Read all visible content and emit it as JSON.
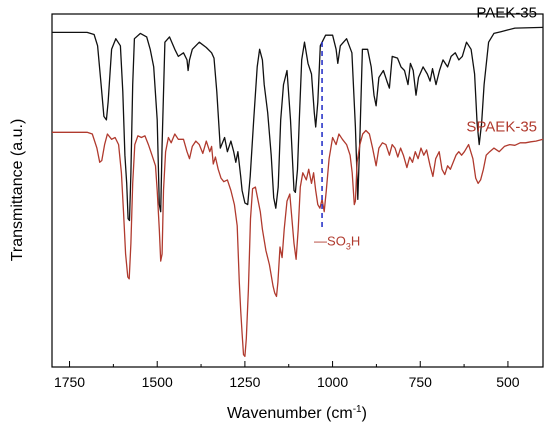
{
  "chart_data": {
    "type": "line",
    "title": "",
    "xlabel": "Wavenumber (cm",
    "xlabel_sup": "-1",
    "xlabel_end": ")",
    "ylabel": "Transmittance (a.u.)",
    "xlim": [
      1800,
      400
    ],
    "x_reversed": true,
    "y_ticks_shown": false,
    "x_ticks": [
      1750,
      1500,
      1250,
      1000,
      750,
      500
    ],
    "x_tick_labels": [
      "1750",
      "1500",
      "1250",
      "1000",
      "750",
      "500"
    ],
    "ylim": [
      0,
      10
    ],
    "grid": false,
    "series": [
      {
        "name": "PAEK-35",
        "color": "#111111",
        "points": [
          [
            1800,
            9.48
          ],
          [
            1700,
            9.48
          ],
          [
            1680,
            9.42
          ],
          [
            1670,
            9.1
          ],
          [
            1660,
            8.0
          ],
          [
            1652,
            7.1
          ],
          [
            1645,
            7.0
          ],
          [
            1640,
            7.5
          ],
          [
            1630,
            9.0
          ],
          [
            1618,
            9.3
          ],
          [
            1605,
            9.1
          ],
          [
            1598,
            7.8
          ],
          [
            1592,
            6.0
          ],
          [
            1587,
            5.2
          ],
          [
            1583,
            4.2
          ],
          [
            1579,
            4.15
          ],
          [
            1575,
            5.5
          ],
          [
            1570,
            8.0
          ],
          [
            1565,
            9.3
          ],
          [
            1548,
            9.45
          ],
          [
            1530,
            9.35
          ],
          [
            1520,
            9.0
          ],
          [
            1510,
            8.5
          ],
          [
            1500,
            7.0
          ],
          [
            1494,
            4.6
          ],
          [
            1490,
            4.4
          ],
          [
            1486,
            6.3
          ],
          [
            1478,
            9.2
          ],
          [
            1465,
            9.35
          ],
          [
            1450,
            9.0
          ],
          [
            1440,
            8.8
          ],
          [
            1425,
            8.9
          ],
          [
            1415,
            8.7
          ],
          [
            1412,
            8.4
          ],
          [
            1408,
            8.7
          ],
          [
            1400,
            9.0
          ],
          [
            1380,
            9.2
          ],
          [
            1360,
            9.05
          ],
          [
            1345,
            8.9
          ],
          [
            1338,
            8.75
          ],
          [
            1330,
            7.8
          ],
          [
            1320,
            6.2
          ],
          [
            1308,
            6.5
          ],
          [
            1300,
            6.1
          ],
          [
            1290,
            6.4
          ],
          [
            1282,
            6.1
          ],
          [
            1276,
            5.8
          ],
          [
            1270,
            6.1
          ],
          [
            1262,
            5.4
          ],
          [
            1258,
            5.0
          ],
          [
            1250,
            4.65
          ],
          [
            1242,
            4.6
          ],
          [
            1235,
            5.4
          ],
          [
            1225,
            7.0
          ],
          [
            1215,
            8.5
          ],
          [
            1208,
            9.0
          ],
          [
            1200,
            8.7
          ],
          [
            1195,
            8.0
          ],
          [
            1185,
            7.2
          ],
          [
            1175,
            6.0
          ],
          [
            1168,
            4.8
          ],
          [
            1162,
            4.5
          ],
          [
            1155,
            5.1
          ],
          [
            1148,
            7.0
          ],
          [
            1140,
            8.0
          ],
          [
            1130,
            8.4
          ],
          [
            1120,
            7.0
          ],
          [
            1110,
            5.0
          ],
          [
            1106,
            4.95
          ],
          [
            1100,
            5.6
          ],
          [
            1095,
            7.0
          ],
          [
            1088,
            8.7
          ],
          [
            1080,
            9.2
          ],
          [
            1070,
            8.6
          ],
          [
            1060,
            8.3
          ],
          [
            1052,
            7.2
          ],
          [
            1048,
            6.8
          ],
          [
            1042,
            7.5
          ],
          [
            1035,
            9.1
          ],
          [
            1020,
            9.4
          ],
          [
            1000,
            9.4
          ],
          [
            990,
            9.0
          ],
          [
            985,
            8.6
          ],
          [
            978,
            9.1
          ],
          [
            960,
            9.3
          ],
          [
            945,
            8.9
          ],
          [
            935,
            6.8
          ],
          [
            928,
            4.75
          ],
          [
            922,
            6.5
          ],
          [
            915,
            9.0
          ],
          [
            900,
            9.0
          ],
          [
            890,
            8.5
          ],
          [
            882,
            7.7
          ],
          [
            876,
            7.4
          ],
          [
            868,
            8.2
          ],
          [
            855,
            8.4
          ],
          [
            845,
            8.1
          ],
          [
            838,
            7.9
          ],
          [
            830,
            8.8
          ],
          [
            815,
            8.75
          ],
          [
            805,
            8.5
          ],
          [
            795,
            8.4
          ],
          [
            785,
            8.0
          ],
          [
            778,
            8.6
          ],
          [
            770,
            8.4
          ],
          [
            762,
            7.7
          ],
          [
            755,
            8.2
          ],
          [
            742,
            8.5
          ],
          [
            730,
            8.3
          ],
          [
            722,
            8.1
          ],
          [
            715,
            8.45
          ],
          [
            705,
            8.0
          ],
          [
            695,
            8.4
          ],
          [
            685,
            8.7
          ],
          [
            672,
            8.5
          ],
          [
            662,
            8.8
          ],
          [
            650,
            8.9
          ],
          [
            640,
            8.7
          ],
          [
            630,
            8.8
          ],
          [
            618,
            9.2
          ],
          [
            605,
            9.0
          ],
          [
            595,
            8.3
          ],
          [
            588,
            6.9
          ],
          [
            582,
            6.3
          ],
          [
            575,
            6.9
          ],
          [
            568,
            8.0
          ],
          [
            555,
            9.2
          ],
          [
            540,
            9.45
          ],
          [
            520,
            9.5
          ],
          [
            500,
            9.55
          ],
          [
            480,
            9.6
          ],
          [
            400,
            9.62
          ]
        ]
      },
      {
        "name": "SPAEK-35",
        "color": "#B03A2E",
        "points": [
          [
            1800,
            6.65
          ],
          [
            1700,
            6.65
          ],
          [
            1685,
            6.6
          ],
          [
            1672,
            6.2
          ],
          [
            1664,
            5.8
          ],
          [
            1658,
            5.85
          ],
          [
            1650,
            6.3
          ],
          [
            1642,
            6.6
          ],
          [
            1630,
            6.45
          ],
          [
            1620,
            6.5
          ],
          [
            1610,
            6.3
          ],
          [
            1602,
            5.5
          ],
          [
            1596,
            4.4
          ],
          [
            1590,
            3.2
          ],
          [
            1584,
            2.55
          ],
          [
            1580,
            2.5
          ],
          [
            1575,
            3.5
          ],
          [
            1570,
            5.2
          ],
          [
            1564,
            6.3
          ],
          [
            1555,
            6.55
          ],
          [
            1545,
            6.5
          ],
          [
            1535,
            6.55
          ],
          [
            1525,
            6.3
          ],
          [
            1515,
            6.0
          ],
          [
            1505,
            5.7
          ],
          [
            1500,
            5.0
          ],
          [
            1494,
            3.9
          ],
          [
            1490,
            3.0
          ],
          [
            1486,
            3.2
          ],
          [
            1482,
            5.0
          ],
          [
            1476,
            6.1
          ],
          [
            1468,
            6.5
          ],
          [
            1460,
            6.35
          ],
          [
            1450,
            6.6
          ],
          [
            1440,
            6.45
          ],
          [
            1425,
            6.45
          ],
          [
            1415,
            6.1
          ],
          [
            1408,
            5.9
          ],
          [
            1400,
            6.25
          ],
          [
            1390,
            6.4
          ],
          [
            1380,
            6.3
          ],
          [
            1370,
            6.05
          ],
          [
            1360,
            6.4
          ],
          [
            1350,
            6.1
          ],
          [
            1345,
            6.25
          ],
          [
            1340,
            5.75
          ],
          [
            1334,
            5.95
          ],
          [
            1326,
            5.6
          ],
          [
            1318,
            5.35
          ],
          [
            1310,
            5.25
          ],
          [
            1300,
            5.3
          ],
          [
            1290,
            5.0
          ],
          [
            1280,
            4.6
          ],
          [
            1272,
            4.0
          ],
          [
            1266,
            2.4
          ],
          [
            1262,
            1.6
          ],
          [
            1258,
            0.95
          ],
          [
            1254,
            0.35
          ],
          [
            1250,
            0.3
          ],
          [
            1246,
            0.8
          ],
          [
            1240,
            2.2
          ],
          [
            1234,
            4.2
          ],
          [
            1228,
            5.05
          ],
          [
            1220,
            5.1
          ],
          [
            1212,
            4.7
          ],
          [
            1206,
            4.4
          ],
          [
            1200,
            3.9
          ],
          [
            1190,
            3.3
          ],
          [
            1180,
            2.9
          ],
          [
            1170,
            2.3
          ],
          [
            1165,
            2.1
          ],
          [
            1160,
            2.0
          ],
          [
            1156,
            2.4
          ],
          [
            1150,
            3.4
          ],
          [
            1144,
            3.1
          ],
          [
            1138,
            3.9
          ],
          [
            1130,
            4.7
          ],
          [
            1122,
            4.9
          ],
          [
            1116,
            4.2
          ],
          [
            1110,
            3.5
          ],
          [
            1104,
            3.05
          ],
          [
            1098,
            3.9
          ],
          [
            1092,
            5.1
          ],
          [
            1085,
            5.5
          ],
          [
            1075,
            5.3
          ],
          [
            1068,
            5.6
          ],
          [
            1060,
            5.2
          ],
          [
            1054,
            5.5
          ],
          [
            1048,
            5.0
          ],
          [
            1042,
            4.6
          ],
          [
            1036,
            4.5
          ],
          [
            1030,
            4.75
          ],
          [
            1024,
            4.4
          ],
          [
            1018,
            5.0
          ],
          [
            1010,
            5.9
          ],
          [
            1000,
            6.5
          ],
          [
            990,
            6.3
          ],
          [
            982,
            6.6
          ],
          [
            972,
            6.45
          ],
          [
            960,
            6.3
          ],
          [
            950,
            6.0
          ],
          [
            944,
            5.5
          ],
          [
            938,
            4.6
          ],
          [
            935,
            4.7
          ],
          [
            930,
            5.8
          ],
          [
            922,
            6.3
          ],
          [
            914,
            6.6
          ],
          [
            905,
            6.7
          ],
          [
            895,
            6.6
          ],
          [
            886,
            6.2
          ],
          [
            876,
            5.7
          ],
          [
            868,
            6.2
          ],
          [
            858,
            6.35
          ],
          [
            848,
            6.3
          ],
          [
            838,
            6.0
          ],
          [
            830,
            6.3
          ],
          [
            822,
            6.2
          ],
          [
            814,
            5.95
          ],
          [
            806,
            6.2
          ],
          [
            798,
            6.0
          ],
          [
            788,
            5.65
          ],
          [
            780,
            5.95
          ],
          [
            772,
            5.8
          ],
          [
            764,
            6.1
          ],
          [
            756,
            5.9
          ],
          [
            748,
            6.2
          ],
          [
            740,
            6.0
          ],
          [
            732,
            6.15
          ],
          [
            722,
            5.7
          ],
          [
            714,
            5.4
          ],
          [
            706,
            5.9
          ],
          [
            696,
            6.1
          ],
          [
            688,
            5.6
          ],
          [
            680,
            5.45
          ],
          [
            672,
            5.7
          ],
          [
            664,
            5.6
          ],
          [
            656,
            5.8
          ],
          [
            648,
            6.0
          ],
          [
            640,
            6.1
          ],
          [
            632,
            6.0
          ],
          [
            624,
            6.1
          ],
          [
            612,
            6.3
          ],
          [
            600,
            5.9
          ],
          [
            592,
            5.35
          ],
          [
            585,
            5.2
          ],
          [
            578,
            5.3
          ],
          [
            570,
            5.6
          ],
          [
            562,
            6.0
          ],
          [
            552,
            6.1
          ],
          [
            540,
            6.2
          ],
          [
            525,
            6.1
          ],
          [
            510,
            6.25
          ],
          [
            495,
            6.3
          ],
          [
            480,
            6.28
          ],
          [
            465,
            6.35
          ],
          [
            450,
            6.35
          ],
          [
            435,
            6.38
          ],
          [
            420,
            6.4
          ],
          [
            400,
            6.45
          ]
        ]
      }
    ],
    "vline": {
      "x": 1030,
      "color": "#2B35C9",
      "style": "dashed"
    },
    "annotation": {
      "main": "SO",
      "sub": "3",
      "end": "H",
      "prefix": "—",
      "color": "#B03A2E",
      "x": 1030
    }
  }
}
